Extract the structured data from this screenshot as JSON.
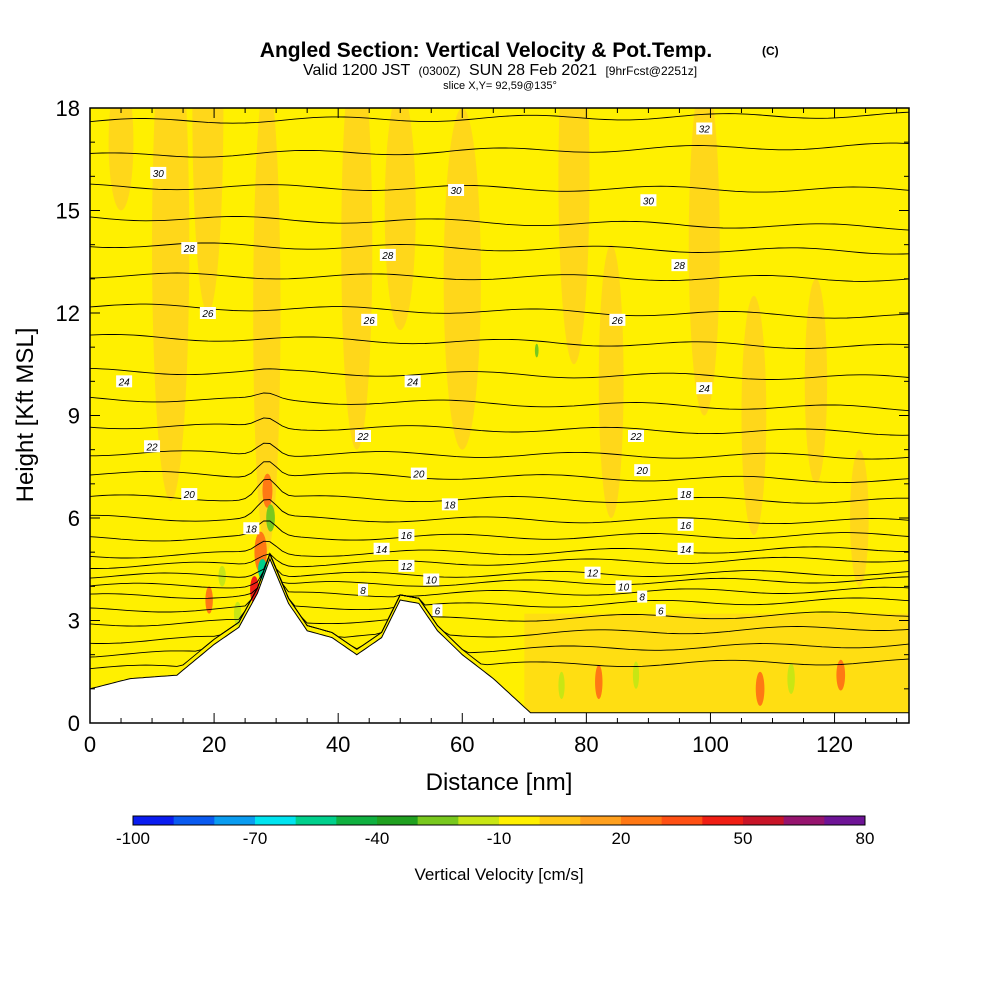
{
  "chart_data": {
    "type": "heatmap",
    "title": "Angled Section: Vertical Velocity & Pot.Temp.",
    "title_suffix": "(C)",
    "subtitle": {
      "part1": "Valid 1200 JST",
      "part2": "(0300Z)",
      "part3": "SUN 28 Feb 2021",
      "part4": "[9hrFcst@2251z]"
    },
    "slice_info": "slice X,Y= 92,59@135°",
    "xlabel": "Distance [nm]",
    "ylabel": "Height [Kft MSL]",
    "xlim": [
      0,
      132
    ],
    "ylim": [
      0,
      18
    ],
    "x_ticks": [
      0,
      20,
      40,
      60,
      80,
      100,
      120
    ],
    "y_ticks": [
      0,
      3,
      6,
      9,
      12,
      15,
      18
    ],
    "colorbar": {
      "label": "Vertical Velocity [cm/s]",
      "tick_labels": [
        "-100",
        "-70",
        "-40",
        "-10",
        "20",
        "50",
        "80"
      ],
      "range": [
        -100,
        80
      ],
      "colors": [
        "#0a1cf0",
        "#0a5af0",
        "#0a9cf0",
        "#00e4f0",
        "#00d08c",
        "#10b040",
        "#20a020",
        "#78c81e",
        "#c8e614",
        "#fff000",
        "#ffc814",
        "#ffa01e",
        "#ff7814",
        "#ff5014",
        "#f01e14",
        "#c81428",
        "#96146e",
        "#6e1496"
      ]
    },
    "background_value_color": "#fff000",
    "terrain_kft": [
      [
        0,
        1.0
      ],
      [
        6.5,
        1.3
      ],
      [
        14,
        1.4
      ],
      [
        20,
        2.3
      ],
      [
        24,
        2.8
      ],
      [
        27,
        3.8
      ],
      [
        29,
        4.8
      ],
      [
        32,
        3.5
      ],
      [
        35,
        2.7
      ],
      [
        39,
        2.5
      ],
      [
        43,
        2.0
      ],
      [
        47,
        2.5
      ],
      [
        50,
        3.6
      ],
      [
        53,
        3.5
      ],
      [
        56,
        2.7
      ],
      [
        60,
        2.0
      ],
      [
        65,
        1.3
      ],
      [
        71,
        0.3
      ],
      [
        132,
        0.3
      ]
    ],
    "isentropes_C": {
      "levels": [
        6,
        8,
        10,
        12,
        14,
        16,
        18,
        20,
        22,
        24,
        26,
        28,
        30,
        32
      ],
      "annotations": [
        {
          "text": "32",
          "x": 99,
          "y": 17.4
        },
        {
          "text": "30",
          "x": 11,
          "y": 16.1
        },
        {
          "text": "30",
          "x": 59,
          "y": 15.6
        },
        {
          "text": "30",
          "x": 90,
          "y": 15.3
        },
        {
          "text": "28",
          "x": 16,
          "y": 13.9
        },
        {
          "text": "28",
          "x": 48,
          "y": 13.7
        },
        {
          "text": "28",
          "x": 95,
          "y": 13.4
        },
        {
          "text": "26",
          "x": 19,
          "y": 12.0
        },
        {
          "text": "26",
          "x": 45,
          "y": 11.8
        },
        {
          "text": "26",
          "x": 85,
          "y": 11.8
        },
        {
          "text": "24",
          "x": 5.5,
          "y": 10.0
        },
        {
          "text": "24",
          "x": 52,
          "y": 10.0
        },
        {
          "text": "24",
          "x": 99,
          "y": 9.8
        },
        {
          "text": "22",
          "x": 10,
          "y": 8.1
        },
        {
          "text": "22",
          "x": 44,
          "y": 8.4
        },
        {
          "text": "22",
          "x": 88,
          "y": 8.4
        },
        {
          "text": "20",
          "x": 16,
          "y": 6.7
        },
        {
          "text": "20",
          "x": 53,
          "y": 7.3
        },
        {
          "text": "20",
          "x": 89,
          "y": 7.4
        },
        {
          "text": "18",
          "x": 26,
          "y": 5.7
        },
        {
          "text": "18",
          "x": 58,
          "y": 6.4
        },
        {
          "text": "18",
          "x": 96,
          "y": 6.7
        },
        {
          "text": "16",
          "x": 51,
          "y": 5.5
        },
        {
          "text": "16",
          "x": 96,
          "y": 5.8
        },
        {
          "text": "14",
          "x": 47,
          "y": 5.1
        },
        {
          "text": "14",
          "x": 96,
          "y": 5.1
        },
        {
          "text": "12",
          "x": 51,
          "y": 4.6
        },
        {
          "text": "12",
          "x": 81,
          "y": 4.4
        },
        {
          "text": "10",
          "x": 55,
          "y": 4.2
        },
        {
          "text": "10",
          "x": 86,
          "y": 4.0
        },
        {
          "text": "8",
          "x": 44,
          "y": 3.9
        },
        {
          "text": "8",
          "x": 89,
          "y": 3.7
        },
        {
          "text": "6",
          "x": 56,
          "y": 3.3
        },
        {
          "text": "6",
          "x": 92,
          "y": 3.3
        }
      ]
    }
  }
}
